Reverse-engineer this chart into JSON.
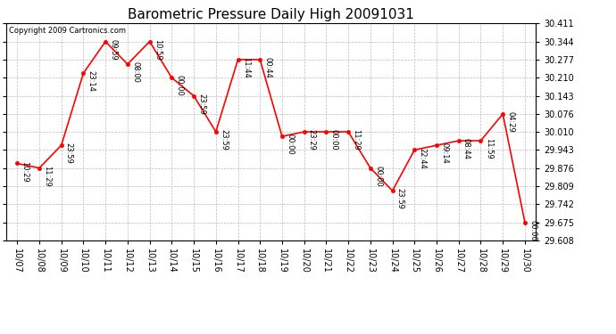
{
  "title": "Barometric Pressure Daily High 20091031",
  "copyright": "Copyright 2009 Cartronics.com",
  "x_labels": [
    "10/07",
    "10/08",
    "10/09",
    "10/10",
    "10/11",
    "10/12",
    "10/13",
    "10/14",
    "10/15",
    "10/16",
    "10/17",
    "10/18",
    "10/19",
    "10/20",
    "10/21",
    "10/22",
    "10/23",
    "10/24",
    "10/25",
    "10/26",
    "10/27",
    "10/28",
    "10/29",
    "10/30"
  ],
  "x_indices": [
    0,
    1,
    2,
    3,
    4,
    5,
    6,
    7,
    8,
    9,
    10,
    11,
    12,
    13,
    14,
    15,
    16,
    17,
    18,
    19,
    20,
    21,
    22,
    23
  ],
  "y_values": [
    29.893,
    29.876,
    29.96,
    30.227,
    30.344,
    30.26,
    30.344,
    30.21,
    30.143,
    30.01,
    30.277,
    30.277,
    29.993,
    30.01,
    30.01,
    30.01,
    29.876,
    29.792,
    29.943,
    29.96,
    29.977,
    29.977,
    30.076,
    29.675
  ],
  "annotations": [
    "10:29",
    "11:29",
    "23:59",
    "23:14",
    "09:59",
    "08:00",
    "10:59",
    "00:00",
    "23:59",
    "23:59",
    "11:44",
    "00:44",
    "00:00",
    "23:29",
    "00:00",
    "11:29",
    "00:00",
    "23:59",
    "22:44",
    "09:14",
    "08:44",
    "11:59",
    "04:29",
    "00:00"
  ],
  "ylim_min": 29.608,
  "ylim_max": 30.411,
  "y_ticks": [
    29.608,
    29.675,
    29.742,
    29.809,
    29.876,
    29.943,
    30.01,
    30.076,
    30.143,
    30.21,
    30.277,
    30.344,
    30.411
  ],
  "line_color": "#FF0000",
  "marker_color": "#FF0000",
  "background_color": "#FFFFFF",
  "grid_color": "#BBBBBB",
  "title_fontsize": 11,
  "annotation_fontsize": 6,
  "tick_fontsize": 7,
  "copyright_fontsize": 6
}
